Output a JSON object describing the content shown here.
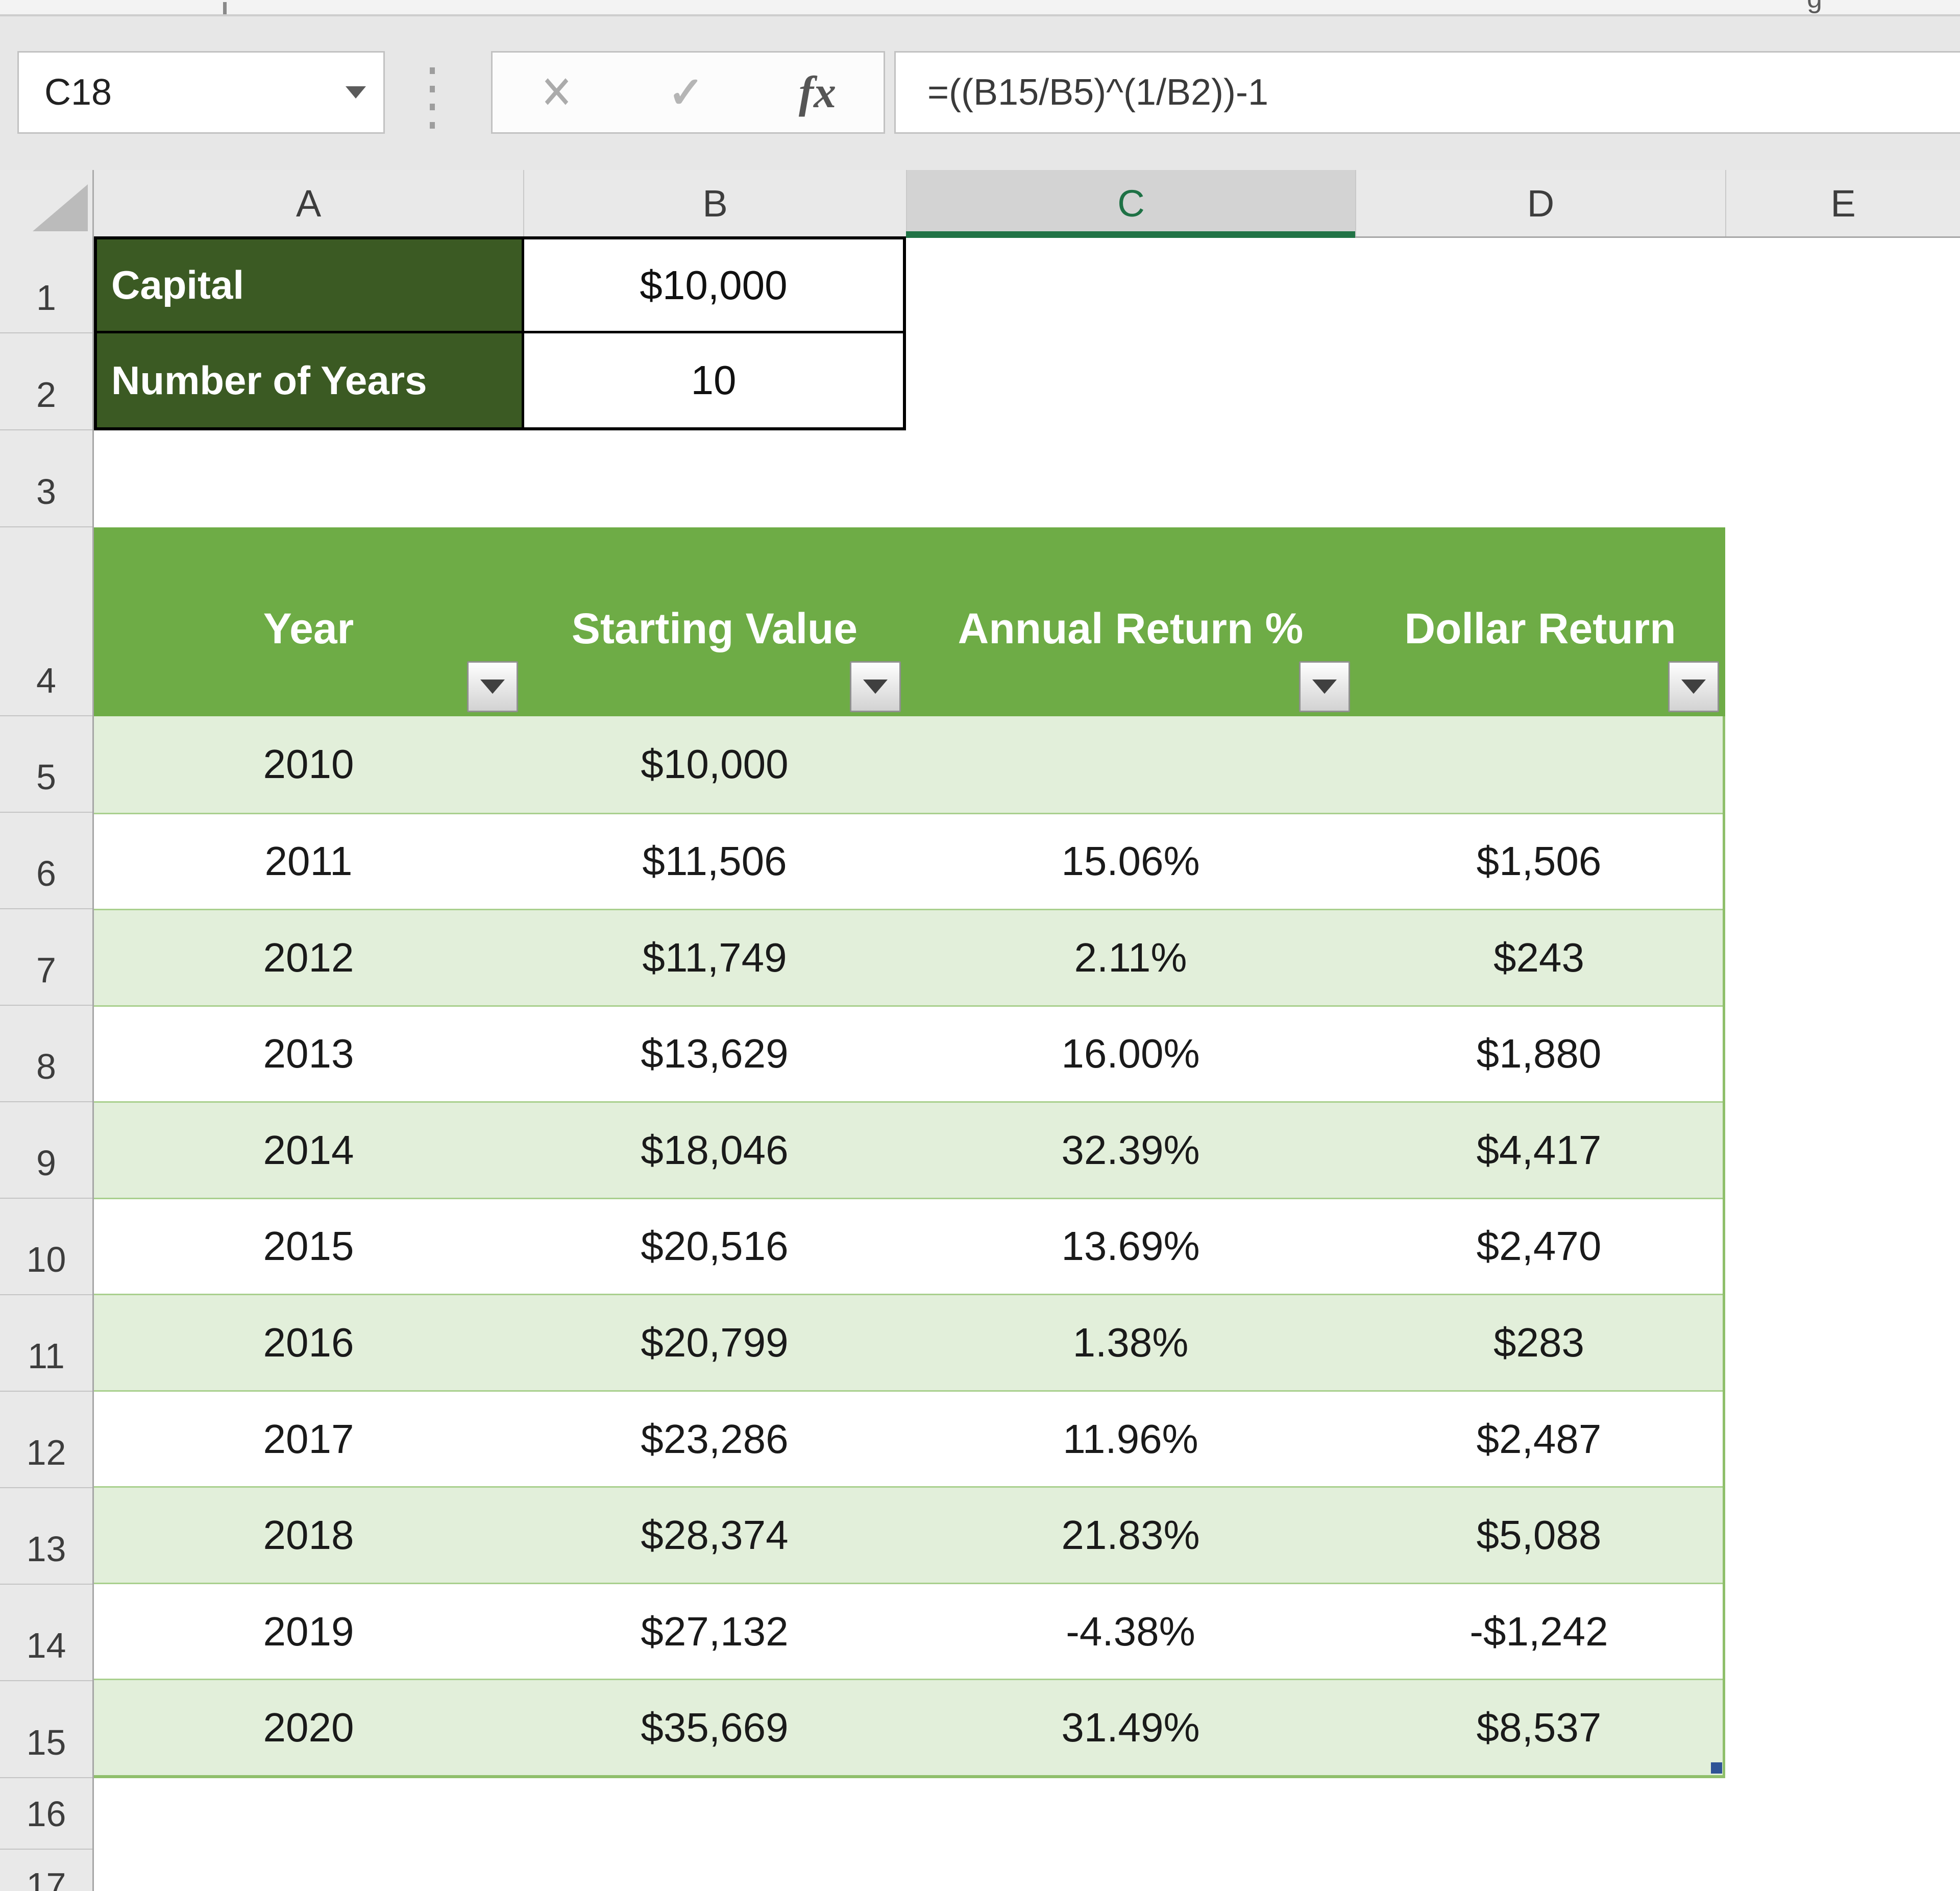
{
  "chrome": {
    "name_box_value": "C18",
    "formula": "=((B15/B5)^(1/B2))-1",
    "fx_glyph": "fx",
    "cancel_glyph": "✕",
    "enter_glyph": "✓",
    "ribbon_fragment": "g"
  },
  "grid": {
    "columns": [
      "A",
      "B",
      "C",
      "D",
      "E"
    ],
    "selected_column": "C",
    "row_numbers": [
      "1",
      "2",
      "3",
      "4",
      "5",
      "6",
      "7",
      "8",
      "9",
      "10",
      "11",
      "12",
      "13",
      "14",
      "15",
      "16",
      "17"
    ]
  },
  "inputs": {
    "capital_label": "Capital",
    "capital_value": "$10,000",
    "years_label": "Number of Years",
    "years_value": "10"
  },
  "table": {
    "headers": [
      "Year",
      "Starting Value",
      "Annual Return %",
      "Dollar Return"
    ],
    "rows": [
      [
        "2010",
        "$10,000",
        "",
        ""
      ],
      [
        "2011",
        "$11,506",
        "15.06%",
        "$1,506"
      ],
      [
        "2012",
        "$11,749",
        "2.11%",
        "$243"
      ],
      [
        "2013",
        "$13,629",
        "16.00%",
        "$1,880"
      ],
      [
        "2014",
        "$18,046",
        "32.39%",
        "$4,417"
      ],
      [
        "2015",
        "$20,516",
        "13.69%",
        "$2,470"
      ],
      [
        "2016",
        "$20,799",
        "1.38%",
        "$283"
      ],
      [
        "2017",
        "$23,286",
        "11.96%",
        "$2,487"
      ],
      [
        "2018",
        "$28,374",
        "21.83%",
        "$5,088"
      ],
      [
        "2019",
        "$27,132",
        "-4.38%",
        "-$1,242"
      ],
      [
        "2020",
        "$35,669",
        "31.49%",
        "$8,537"
      ]
    ]
  },
  "colors": {
    "dark_green": "#3B5A23",
    "header_green": "#6EAC46",
    "band_green": "#E2EFDA",
    "separator_green": "#A9D08E",
    "selected_header_green": "#217346",
    "handle_blue": "#2F5496"
  }
}
